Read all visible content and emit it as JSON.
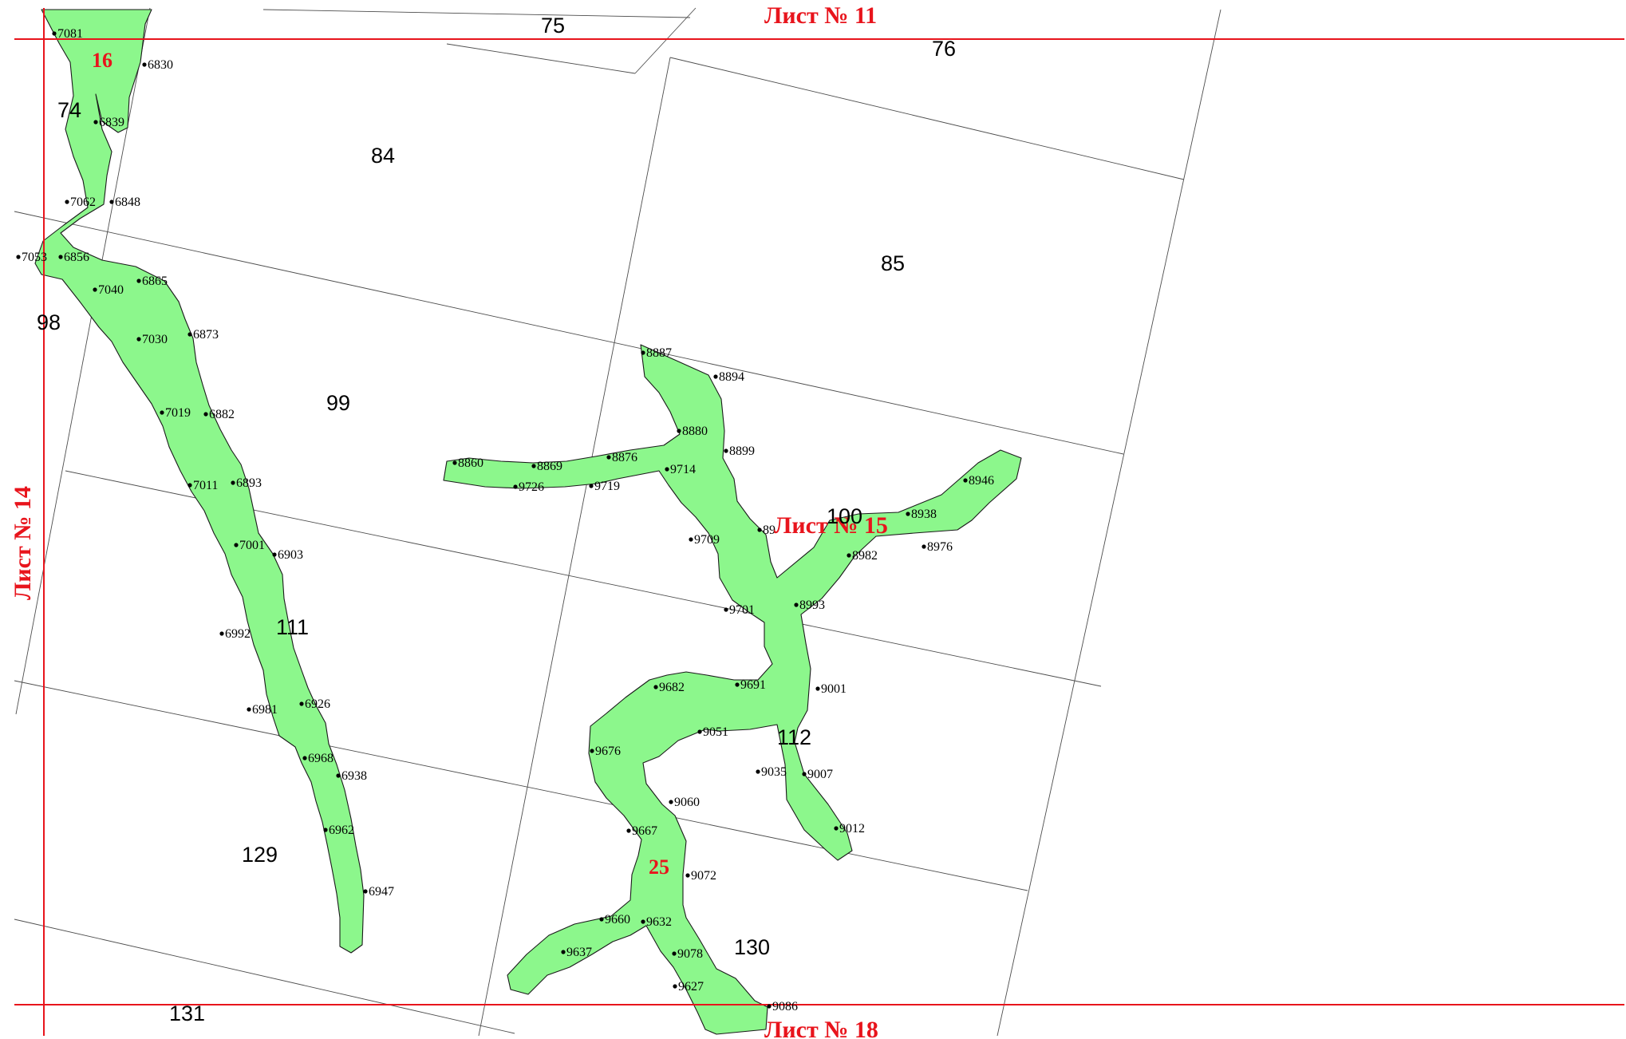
{
  "map": {
    "sheets": [
      {
        "id": "north",
        "label": "Лист № 11"
      },
      {
        "id": "west",
        "label": "Лист № 14"
      },
      {
        "id": "center",
        "label": "Лист № 15"
      },
      {
        "id": "south",
        "label": "Лист № 18"
      }
    ],
    "zones": [
      "16",
      "25"
    ],
    "parcels": [
      "75",
      "76",
      "74",
      "84",
      "85",
      "98",
      "99",
      "100",
      "111",
      "112",
      "129",
      "130",
      "131"
    ],
    "points": [
      "7081",
      "6830",
      "6839",
      "7062",
      "6848",
      "7053",
      "6856",
      "7040",
      "6865",
      "7030",
      "6873",
      "7019",
      "6882",
      "7011",
      "6893",
      "7001",
      "6903",
      "6992",
      "6981",
      "6926",
      "6968",
      "6938",
      "6962",
      "6947",
      "8887",
      "8894",
      "8880",
      "8899",
      "8876",
      "9714",
      "8860",
      "8869",
      "9726",
      "9719",
      "9709",
      "89",
      "8938",
      "8946",
      "8982",
      "8976",
      "8993",
      "9701",
      "9682",
      "9691",
      "9001",
      "9676",
      "9051",
      "9035",
      "9007",
      "9060",
      "9012",
      "9667",
      "9072",
      "9660",
      "9632",
      "9637",
      "9078",
      "9627",
      "9086"
    ],
    "colors": {
      "sheet_lines": "#e8141c",
      "water_zone_fill": "#8cf78c",
      "parcel_lines": "#4d4d4d",
      "points": "#000000"
    }
  }
}
